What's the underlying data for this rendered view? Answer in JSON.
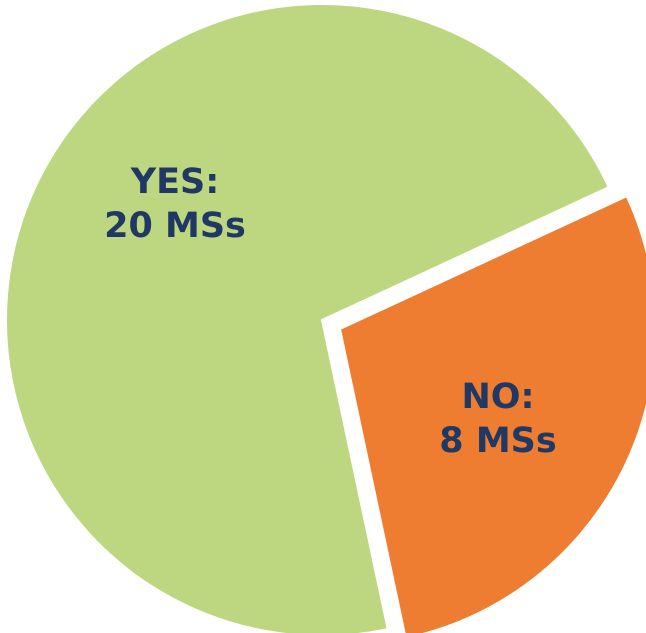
{
  "chart_data": {
    "type": "pie",
    "categories": [
      "YES:",
      "NO:"
    ],
    "values": [
      20,
      8
    ],
    "value_labels": [
      "20 MSs",
      "8 MSs"
    ],
    "colors": [
      "#bcd77f",
      "#ee7d31"
    ]
  }
}
